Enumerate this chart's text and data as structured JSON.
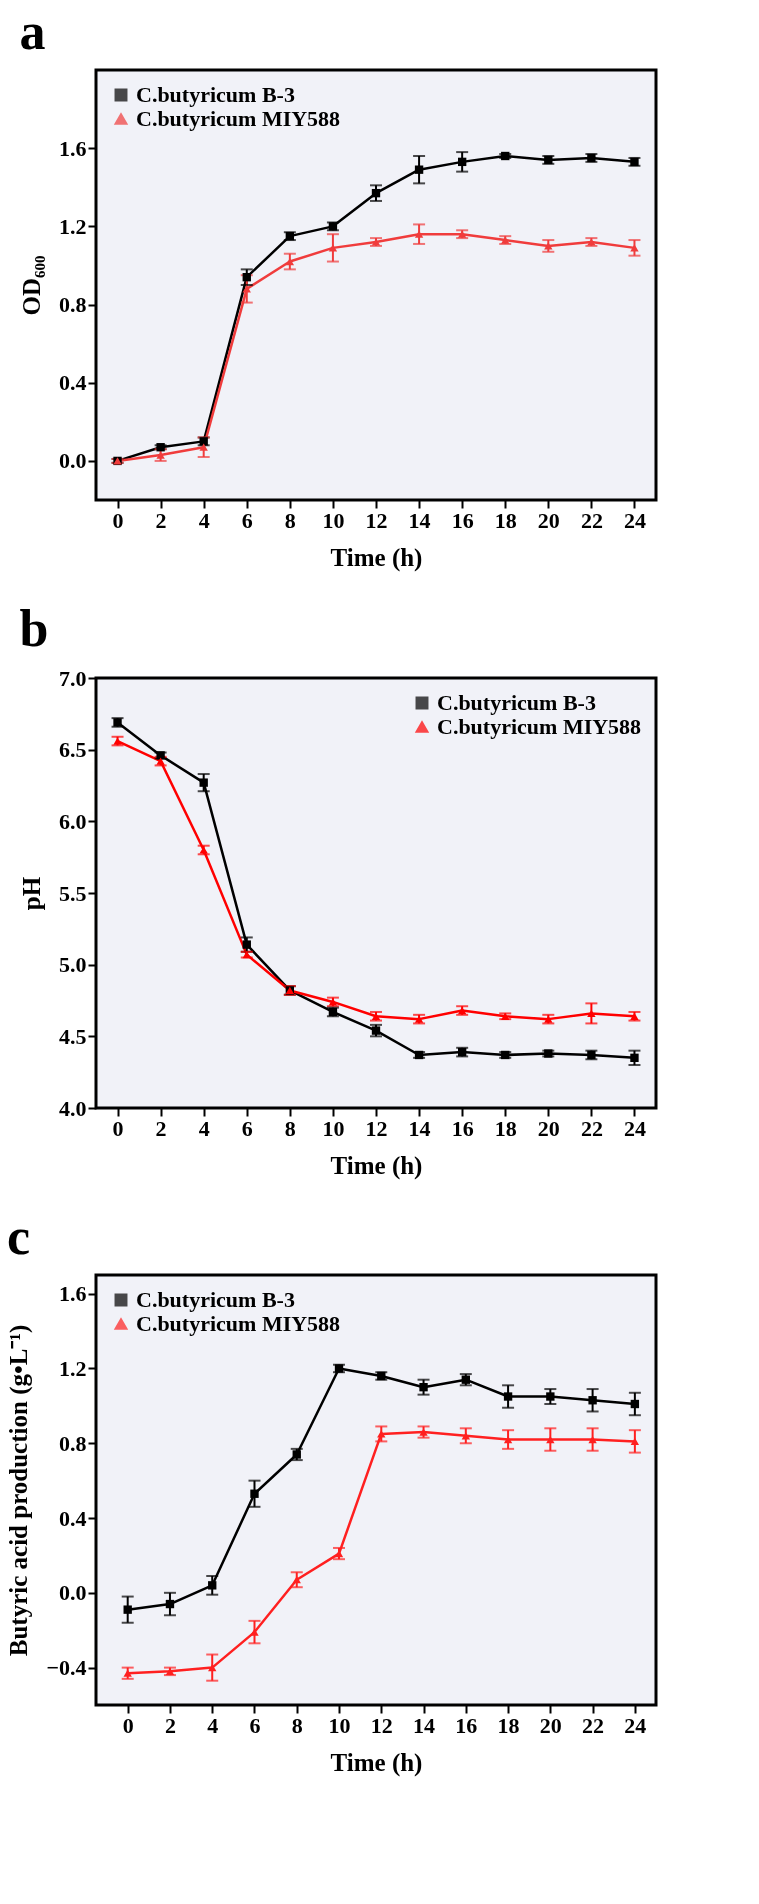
{
  "chart_data": [
    {
      "type": "line",
      "title": "a",
      "xlabel": "Time (h)",
      "ylabel": "OD₆₀₀",
      "x": [
        0,
        2,
        4,
        6,
        8,
        10,
        12,
        14,
        16,
        18,
        20,
        22,
        24
      ],
      "xlim": [
        -1,
        25
      ],
      "xticks": [
        0,
        2,
        4,
        6,
        8,
        10,
        12,
        14,
        16,
        18,
        20,
        22,
        24
      ],
      "ylim": [
        -0.2,
        2.0
      ],
      "yticks": [
        {
          "value": 0.0,
          "label": "0.0"
        },
        {
          "value": 0.4,
          "label": "0.4"
        },
        {
          "value": 0.8,
          "label": "0.8"
        },
        {
          "value": 1.2,
          "label": "1.2"
        },
        {
          "value": 1.6,
          "label": "1.6"
        }
      ],
      "legend": "top left",
      "grid": false,
      "series": [
        {
          "name": "C.butyricum B-3",
          "color": "#000000",
          "marker": "square",
          "values": [
            0.0,
            0.07,
            0.1,
            0.94,
            1.15,
            1.2,
            1.37,
            1.49,
            1.53,
            1.56,
            1.54,
            1.55,
            1.53
          ],
          "errors": [
            0.01,
            0.01,
            0.02,
            0.04,
            0.02,
            0.02,
            0.04,
            0.07,
            0.05,
            0.01,
            0.02,
            0.02,
            0.02
          ]
        },
        {
          "name": "C.butyricum MIY588",
          "color": "#f03c3c",
          "marker": "triangle",
          "values": [
            0.0,
            0.03,
            0.07,
            0.88,
            1.02,
            1.09,
            1.12,
            1.16,
            1.16,
            1.13,
            1.1,
            1.12,
            1.09
          ],
          "errors": [
            0.01,
            0.03,
            0.05,
            0.07,
            0.04,
            0.07,
            0.02,
            0.05,
            0.02,
            0.02,
            0.03,
            0.02,
            0.04
          ]
        }
      ]
    },
    {
      "type": "line",
      "title": "b",
      "xlabel": "Time (h)",
      "ylabel": "pH",
      "x": [
        0,
        2,
        4,
        6,
        8,
        10,
        12,
        14,
        16,
        18,
        20,
        22,
        24
      ],
      "xlim": [
        -1,
        25
      ],
      "xticks": [
        0,
        2,
        4,
        6,
        8,
        10,
        12,
        14,
        16,
        18,
        20,
        22,
        24
      ],
      "ylim": [
        4.0,
        7.0
      ],
      "yticks": [
        {
          "value": 4.0,
          "label": "4.0"
        },
        {
          "value": 4.5,
          "label": "4.5"
        },
        {
          "value": 5.0,
          "label": "5.0"
        },
        {
          "value": 5.5,
          "label": "5.5"
        },
        {
          "value": 6.0,
          "label": "6.0"
        },
        {
          "value": 6.5,
          "label": "6.5"
        },
        {
          "value": 7.0,
          "label": "7.0"
        }
      ],
      "legend": "top right",
      "grid": false,
      "series": [
        {
          "name": "C.butyricum B-3",
          "color": "#000000",
          "marker": "square",
          "values": [
            6.69,
            6.46,
            6.27,
            5.14,
            4.82,
            4.67,
            4.54,
            4.37,
            4.39,
            4.37,
            4.38,
            4.37,
            4.35
          ],
          "errors": [
            0.03,
            0.02,
            0.06,
            0.05,
            0.03,
            0.03,
            0.04,
            0.02,
            0.03,
            0.02,
            0.02,
            0.03,
            0.05
          ]
        },
        {
          "name": "C.butyricum MIY588",
          "color": "#ff0000",
          "marker": "triangle",
          "values": [
            6.56,
            6.42,
            5.8,
            5.07,
            4.82,
            4.74,
            4.64,
            4.62,
            4.68,
            4.64,
            4.62,
            4.66,
            4.64
          ],
          "errors": [
            0.03,
            0.03,
            0.03,
            0.02,
            0.03,
            0.03,
            0.03,
            0.03,
            0.03,
            0.02,
            0.03,
            0.07,
            0.03
          ]
        }
      ]
    },
    {
      "type": "line",
      "title": "c",
      "xlabel": "Time (h)",
      "ylabel": "Butyric acid production (g•L⁻¹)",
      "x": [
        0,
        2,
        4,
        6,
        8,
        10,
        12,
        14,
        16,
        18,
        20,
        22,
        24
      ],
      "xlim": [
        -1.5,
        25
      ],
      "xticks": [
        0,
        2,
        4,
        6,
        8,
        10,
        12,
        14,
        16,
        18,
        20,
        22,
        24
      ],
      "ylim": [
        -0.6,
        1.7
      ],
      "yticks": [
        {
          "value": -0.4,
          "label": "−0.4"
        },
        {
          "value": 0.0,
          "label": "0.0"
        },
        {
          "value": 0.4,
          "label": "0.4"
        },
        {
          "value": 0.8,
          "label": "0.8"
        },
        {
          "value": 1.2,
          "label": "1.2"
        },
        {
          "value": 1.6,
          "label": "1.6"
        }
      ],
      "legend": "top left",
      "grid": false,
      "series": [
        {
          "name": "C.butyricum B-3",
          "color": "#000000",
          "marker": "square",
          "values": [
            -0.09,
            -0.06,
            0.04,
            0.53,
            0.74,
            1.2,
            1.16,
            1.1,
            1.14,
            1.05,
            1.05,
            1.03,
            1.01
          ],
          "errors": [
            0.07,
            0.06,
            0.05,
            0.07,
            0.03,
            0.02,
            0.02,
            0.04,
            0.03,
            0.06,
            0.04,
            0.06,
            0.06
          ]
        },
        {
          "name": "C.butyricum MIY588",
          "color": "#ff2020",
          "marker": "triangle",
          "values": [
            -0.43,
            -0.42,
            -0.4,
            -0.21,
            0.07,
            0.21,
            0.85,
            0.86,
            0.84,
            0.82,
            0.82,
            0.82,
            0.81
          ],
          "errors": [
            0.03,
            0.02,
            0.07,
            0.06,
            0.04,
            0.03,
            0.04,
            0.03,
            0.04,
            0.05,
            0.06,
            0.06,
            0.06
          ]
        }
      ]
    }
  ]
}
